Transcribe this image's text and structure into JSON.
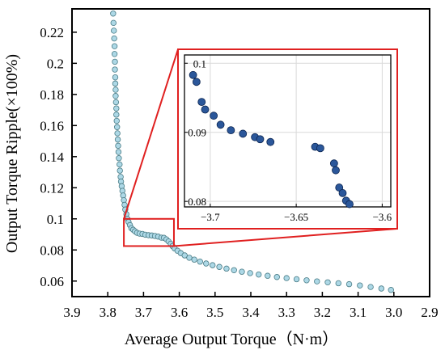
{
  "chart_data": [
    {
      "type": "scatter",
      "title": "",
      "xlabel": "Average Output Torque（N·m）",
      "ylabel": "Output Torque Ripple(×100%)",
      "x_reversed": true,
      "xlim": [
        3.9,
        2.9
      ],
      "ylim": [
        0.05,
        0.235
      ],
      "xticks": [
        3.9,
        3.8,
        3.7,
        3.6,
        3.5,
        3.4,
        3.3,
        3.2,
        3.1,
        3.0,
        2.9
      ],
      "xtick_labels": [
        "3.9",
        "3.8",
        "3.7",
        "3.6",
        "3.5",
        "3.4",
        "3.3",
        "3.2",
        "3.1",
        "3.0",
        "2.9"
      ],
      "yticks": [
        0.06,
        0.08,
        0.1,
        0.12,
        0.14,
        0.16,
        0.18,
        0.2,
        0.22
      ],
      "ytick_labels": [
        "0.06",
        "0.08",
        "0.1",
        "0.12",
        "0.14",
        "0.16",
        "0.18",
        "0.2",
        "0.22"
      ],
      "marker_color": "#add8e6",
      "marker_edge": "#4a7c86",
      "highlight_box": {
        "x": [
          3.755,
          3.615
        ],
        "y": [
          0.0825,
          0.1
        ],
        "color": "#e02020"
      },
      "points": [
        [
          3.785,
          0.232
        ],
        [
          3.784,
          0.226
        ],
        [
          3.783,
          0.221
        ],
        [
          3.782,
          0.216
        ],
        [
          3.781,
          0.211
        ],
        [
          3.781,
          0.206
        ],
        [
          3.78,
          0.201
        ],
        [
          3.78,
          0.196
        ],
        [
          3.779,
          0.191
        ],
        [
          3.779,
          0.187
        ],
        [
          3.778,
          0.183
        ],
        [
          3.778,
          0.179
        ],
        [
          3.777,
          0.175
        ],
        [
          3.776,
          0.171
        ],
        [
          3.776,
          0.167
        ],
        [
          3.775,
          0.163
        ],
        [
          3.774,
          0.159
        ],
        [
          3.773,
          0.155
        ],
        [
          3.772,
          0.151
        ],
        [
          3.771,
          0.147
        ],
        [
          3.77,
          0.143
        ],
        [
          3.769,
          0.139
        ],
        [
          3.767,
          0.135
        ],
        [
          3.766,
          0.131
        ],
        [
          3.764,
          0.127
        ],
        [
          3.763,
          0.124
        ],
        [
          3.761,
          0.121
        ],
        [
          3.759,
          0.118
        ],
        [
          3.757,
          0.115
        ],
        [
          3.755,
          0.112
        ],
        [
          3.753,
          0.109
        ],
        [
          3.751,
          0.106
        ],
        [
          3.748,
          0.103
        ],
        [
          3.745,
          0.1
        ],
        [
          3.742,
          0.098
        ],
        [
          3.738,
          0.096
        ],
        [
          3.734,
          0.094
        ],
        [
          3.729,
          0.093
        ],
        [
          3.724,
          0.092
        ],
        [
          3.718,
          0.091
        ],
        [
          3.711,
          0.0905
        ],
        [
          3.703,
          0.0903
        ],
        [
          3.695,
          0.0898
        ],
        [
          3.686,
          0.0895
        ],
        [
          3.677,
          0.0893
        ],
        [
          3.668,
          0.089
        ],
        [
          3.659,
          0.0886
        ],
        [
          3.65,
          0.0879
        ],
        [
          3.643,
          0.0878
        ],
        [
          3.636,
          0.0868
        ],
        [
          3.63,
          0.0855
        ],
        [
          3.624,
          0.084
        ],
        [
          3.619,
          0.0825
        ],
        [
          3.613,
          0.081
        ],
        [
          3.605,
          0.0795
        ],
        [
          3.596,
          0.078
        ],
        [
          3.585,
          0.0765
        ],
        [
          3.572,
          0.075
        ],
        [
          3.558,
          0.0738
        ],
        [
          3.542,
          0.0725
        ],
        [
          3.525,
          0.0713
        ],
        [
          3.507,
          0.0702
        ],
        [
          3.488,
          0.0691
        ],
        [
          3.468,
          0.068
        ],
        [
          3.447,
          0.067
        ],
        [
          3.425,
          0.066
        ],
        [
          3.402,
          0.0651
        ],
        [
          3.378,
          0.0642
        ],
        [
          3.353,
          0.0634
        ],
        [
          3.327,
          0.0626
        ],
        [
          3.3,
          0.0619
        ],
        [
          3.272,
          0.0612
        ],
        [
          3.244,
          0.0605
        ],
        [
          3.215,
          0.0598
        ],
        [
          3.185,
          0.0592
        ],
        [
          3.155,
          0.0586
        ],
        [
          3.125,
          0.058
        ],
        [
          3.095,
          0.0572
        ],
        [
          3.065,
          0.0562
        ],
        [
          3.035,
          0.0552
        ],
        [
          3.008,
          0.0543
        ]
      ]
    },
    {
      "type": "scatter",
      "title": "",
      "xlabel": "",
      "ylabel": "",
      "xlim": [
        -3.715,
        -3.595
      ],
      "ylim": [
        0.0792,
        0.1012
      ],
      "xticks": [
        -3.7,
        -3.65,
        -3.6
      ],
      "xtick_labels": [
        "−3.7",
        "−3.65",
        "−3.6"
      ],
      "yticks": [
        0.08,
        0.09,
        0.1
      ],
      "ytick_labels": [
        "0.08",
        "0.09",
        "0.1"
      ],
      "marker_color": "#2b579a",
      "points": [
        [
          -3.71,
          0.0983
        ],
        [
          -3.708,
          0.0973
        ],
        [
          -3.705,
          0.0944
        ],
        [
          -3.703,
          0.0933
        ],
        [
          -3.698,
          0.0924
        ],
        [
          -3.694,
          0.0911
        ],
        [
          -3.688,
          0.0903
        ],
        [
          -3.681,
          0.0898
        ],
        [
          -3.674,
          0.0893
        ],
        [
          -3.671,
          0.089
        ],
        [
          -3.665,
          0.0886
        ],
        [
          -3.639,
          0.0879
        ],
        [
          -3.636,
          0.0877
        ],
        [
          -3.628,
          0.0855
        ],
        [
          -3.627,
          0.0845
        ],
        [
          -3.625,
          0.082
        ],
        [
          -3.623,
          0.0812
        ],
        [
          -3.621,
          0.0801
        ],
        [
          -3.619,
          0.0796
        ]
      ]
    }
  ]
}
